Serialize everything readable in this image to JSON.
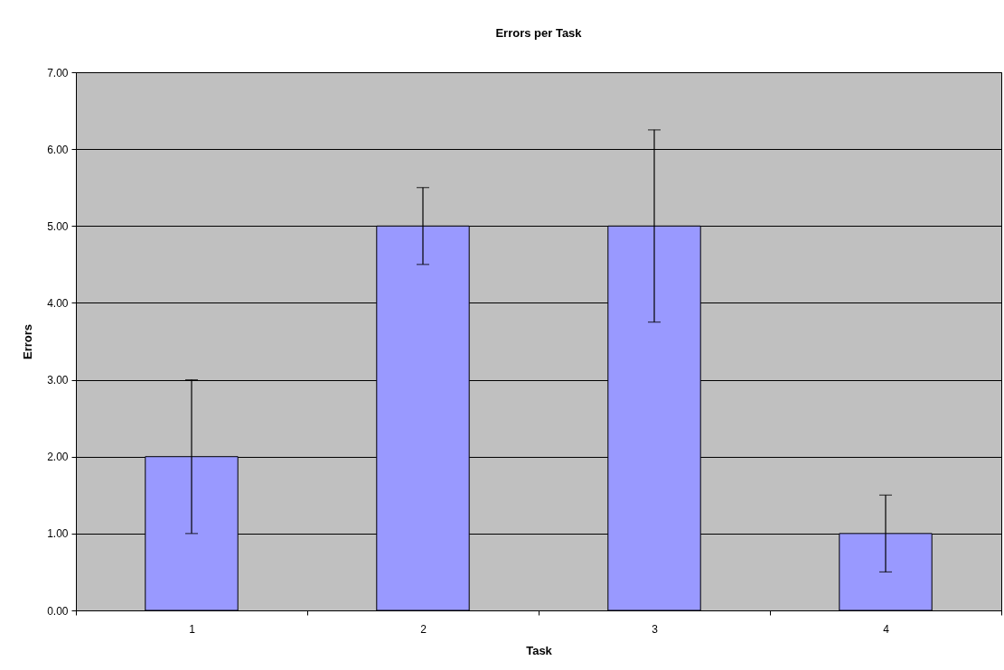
{
  "chart_data": {
    "type": "bar",
    "title": "Errors per Task",
    "xlabel": "Task",
    "ylabel": "Errors",
    "categories": [
      "1",
      "2",
      "3",
      "4"
    ],
    "values": [
      2,
      5,
      5,
      1
    ],
    "errors": [
      1,
      0.5,
      1.25,
      0.5
    ],
    "color": "#9999ff",
    "ylim": [
      0,
      7
    ],
    "yticks": [
      {
        "value": 0,
        "label": "0.00"
      },
      {
        "value": 1,
        "label": "1.00"
      },
      {
        "value": 2,
        "label": "2.00"
      },
      {
        "value": 3,
        "label": "3.00"
      },
      {
        "value": 4,
        "label": "4.00"
      },
      {
        "value": 5,
        "label": "5.00"
      },
      {
        "value": 6,
        "label": "6.00"
      },
      {
        "value": 7,
        "label": "7.00"
      }
    ],
    "grid": "y"
  }
}
